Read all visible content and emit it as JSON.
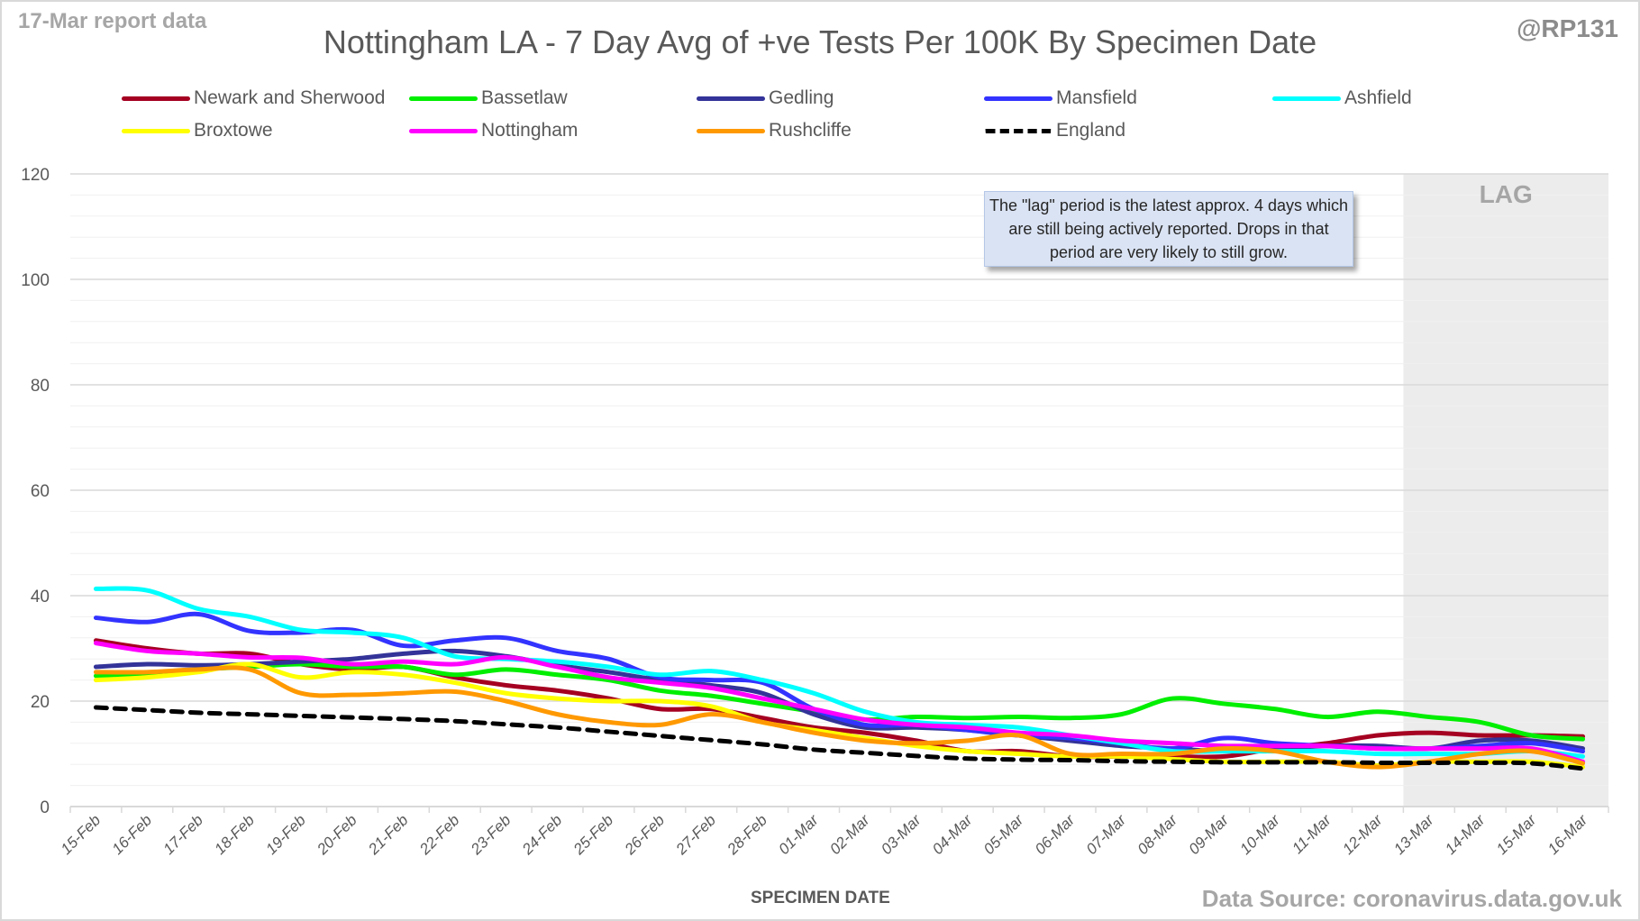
{
  "header": {
    "report_label": "17-Mar report data",
    "handle": "@RP131",
    "title": "Nottingham LA - 7 Day Avg of +ve Tests Per 100K By Specimen Date"
  },
  "annotation": {
    "text": "The \"lag\" period is the latest approx. 4 days which are still being actively reported.  Drops in that period are very likely to still grow."
  },
  "footer": {
    "source": "Data Source: coronavirus.data.gov.uk"
  },
  "chart_data": {
    "type": "line",
    "title": "Nottingham LA - 7 Day Avg of +ve Tests Per 100K By Specimen Date",
    "xlabel": "SPECIMEN DATE",
    "ylabel": "",
    "ylim": [
      0,
      120
    ],
    "yticks": [
      0,
      20,
      40,
      60,
      80,
      100,
      120
    ],
    "grid": true,
    "legend_position": "top",
    "lag_region": {
      "label": "LAG",
      "from": "13-Mar",
      "to": "16-Mar"
    },
    "categories": [
      "15-Feb",
      "16-Feb",
      "17-Feb",
      "18-Feb",
      "19-Feb",
      "20-Feb",
      "21-Feb",
      "22-Feb",
      "23-Feb",
      "24-Feb",
      "25-Feb",
      "26-Feb",
      "27-Feb",
      "28-Feb",
      "01-Mar",
      "02-Mar",
      "03-Mar",
      "04-Mar",
      "05-Mar",
      "06-Mar",
      "07-Mar",
      "08-Mar",
      "09-Mar",
      "10-Mar",
      "11-Mar",
      "12-Mar",
      "13-Mar",
      "14-Mar",
      "15-Mar",
      "16-Mar"
    ],
    "series": [
      {
        "name": "Newark and Sherwood",
        "color": "#a50021",
        "dashed": false,
        "values": [
          31.5,
          30,
          29,
          29,
          27,
          26,
          26.5,
          24.5,
          23,
          22,
          20.5,
          18.5,
          18.5,
          16.8,
          15,
          14,
          12.5,
          10.5,
          10.5,
          9.5,
          9.5,
          9.5,
          9.5,
          11,
          12,
          13.5,
          14,
          13.5,
          13.5,
          13.3
        ]
      },
      {
        "name": "Bassetlaw",
        "color": "#00ee00",
        "dashed": false,
        "values": [
          24.8,
          25,
          26,
          26.5,
          27,
          26.5,
          26.5,
          25,
          26,
          25,
          24,
          22,
          21,
          19.5,
          18,
          16.5,
          17,
          16.8,
          17,
          16.8,
          17.5,
          20.5,
          19.5,
          18.5,
          17,
          18,
          17,
          16,
          13.5,
          12.8
        ]
      },
      {
        "name": "Gedling",
        "color": "#333399",
        "dashed": false,
        "values": [
          26.5,
          27,
          26.8,
          27,
          27.5,
          28,
          29,
          29.5,
          28.5,
          26.8,
          25.5,
          24,
          23,
          21.5,
          17.5,
          15,
          15,
          14.5,
          13.5,
          12.5,
          11.5,
          11,
          10.5,
          11,
          11.5,
          11.5,
          11,
          12.5,
          12.5,
          11
        ]
      },
      {
        "name": "Mansfield",
        "color": "#3333ff",
        "dashed": false,
        "values": [
          35.8,
          35,
          36.5,
          33.3,
          33,
          33.5,
          30.5,
          31.5,
          32,
          29.5,
          28,
          24.5,
          24,
          23.5,
          18.5,
          15.5,
          15.5,
          14.5,
          13.5,
          13,
          12,
          11,
          13,
          12,
          11.5,
          11,
          11,
          11.5,
          12,
          10.5
        ]
      },
      {
        "name": "Ashfield",
        "color": "#00ffff",
        "dashed": false,
        "values": [
          41.3,
          41,
          37.5,
          36,
          33.5,
          33,
          32,
          28.5,
          28,
          27.5,
          26.5,
          25,
          25.7,
          24,
          21.5,
          18,
          16,
          15.5,
          15,
          13.5,
          12,
          10.5,
          10.5,
          10.5,
          10.5,
          10,
          10,
          10,
          10.5,
          9.5
        ]
      },
      {
        "name": "Broxtowe",
        "color": "#ffff00",
        "dashed": false,
        "values": [
          24,
          24.5,
          25.5,
          27,
          24.5,
          25.5,
          25,
          23.5,
          21.5,
          20.5,
          20,
          20,
          19,
          16,
          14.5,
          13,
          11.5,
          10.5,
          10,
          9.5,
          9.5,
          9,
          8.5,
          8.5,
          8.5,
          7.8,
          8.5,
          8.5,
          8.5,
          7.5
        ]
      },
      {
        "name": "Nottingham",
        "color": "#ff00ff",
        "dashed": false,
        "values": [
          31,
          29.5,
          29,
          28.3,
          28.2,
          27,
          27.5,
          27,
          28.3,
          26.5,
          24.5,
          23.5,
          22.5,
          20.5,
          18.5,
          16.5,
          15.5,
          15,
          14,
          13.5,
          12.5,
          12,
          11.5,
          11.5,
          11.5,
          11,
          11,
          11,
          11,
          8.5
        ]
      },
      {
        "name": "Rushcliffe",
        "color": "#ff9900",
        "dashed": false,
        "values": [
          25.5,
          25.5,
          26,
          26,
          21.5,
          21.2,
          21.5,
          21.8,
          20,
          17.5,
          16,
          15.5,
          17.5,
          16,
          14,
          12.5,
          12,
          12.5,
          13.5,
          10,
          10,
          10,
          11,
          10.5,
          8.5,
          7.5,
          8.5,
          10,
          10.5,
          8.2
        ]
      },
      {
        "name": "England",
        "color": "#000000",
        "dashed": true,
        "values": [
          18.8,
          18.3,
          17.8,
          17.5,
          17.2,
          16.9,
          16.6,
          16.2,
          15.6,
          15,
          14.2,
          13.4,
          12.6,
          11.8,
          10.8,
          10.2,
          9.6,
          9.1,
          8.9,
          8.8,
          8.6,
          8.5,
          8.4,
          8.4,
          8.4,
          8.3,
          8.3,
          8.3,
          8.2,
          7.2
        ]
      }
    ]
  }
}
